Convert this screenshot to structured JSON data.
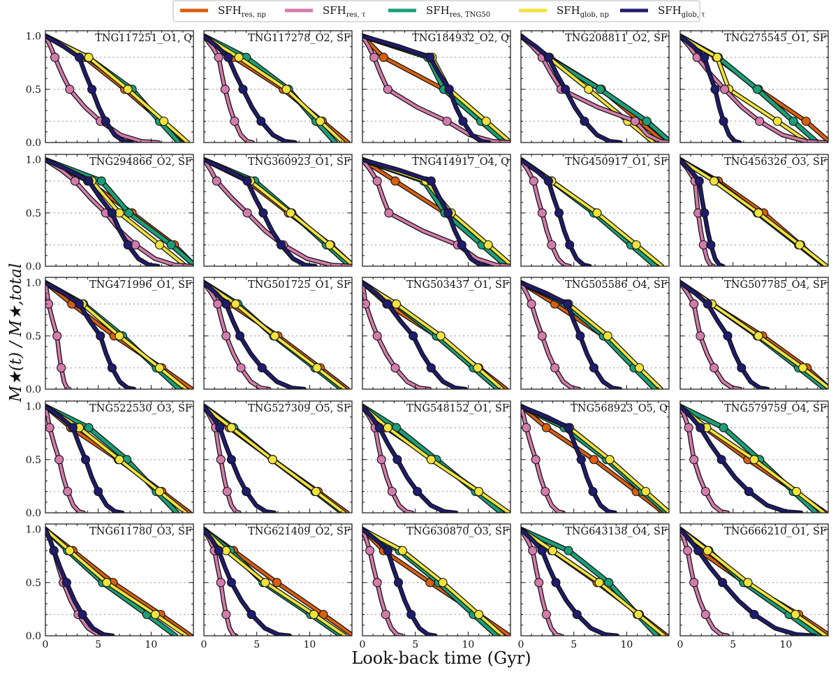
{
  "chart_data": {
    "type": "line",
    "layout": "5x5 grid of small-multiple panels",
    "xlabel": "Look-back time (Gyr)",
    "ylabel": "M★(t) / M★,total",
    "xlim": [
      0,
      14
    ],
    "ylim": [
      0,
      1.05
    ],
    "xticks": [
      0,
      5,
      10
    ],
    "yticks": [
      "0.0",
      "0.5",
      "1.0"
    ],
    "reference_lines_y": [
      0.2,
      0.5,
      0.8
    ],
    "legend_position": "top-center",
    "legend": [
      {
        "id": "res_np",
        "base": "SFH",
        "sub": "res, np",
        "color": "#d95f0e"
      },
      {
        "id": "res_tau",
        "base": "SFH",
        "sub": "res, τ",
        "color": "#d47bad"
      },
      {
        "id": "res_tng",
        "base": "SFH",
        "sub": "res, TNG50",
        "color": "#1b9e77"
      },
      {
        "id": "glob_np",
        "base": "SFH",
        "sub": "glob, np",
        "color": "#f1e33c"
      },
      {
        "id": "glob_tau",
        "base": "SFH",
        "sub": "glob, τ",
        "color": "#1f1c6e"
      }
    ],
    "series_note": "each series given by look-back times (Gyr) at which the cumulative mass fraction equals 0.8, 0.5, 0.2 (marked points)",
    "panels": [
      {
        "label": "TNG117251_O1, Q",
        "res_np": [
          3.7,
          7.5,
          11.0
        ],
        "res_tau": [
          0.9,
          2.3,
          5.2
        ],
        "res_tng": [
          4.0,
          8.2,
          10.8
        ],
        "glob_np": [
          4.1,
          7.8,
          11.2
        ],
        "glob_tau": [
          3.2,
          4.4,
          5.7
        ]
      },
      {
        "label": "TNG117278_O2, SF",
        "res_np": [
          2.8,
          7.5,
          11.2
        ],
        "res_tau": [
          1.4,
          2.0,
          2.9
        ],
        "res_tng": [
          4.0,
          8.0,
          10.6
        ],
        "glob_np": [
          3.3,
          7.8,
          11.0
        ],
        "glob_tau": [
          2.3,
          3.7,
          5.4
        ]
      },
      {
        "label": "TNG184932_O2, Q",
        "res_np": [
          2.0,
          7.7,
          11.4
        ],
        "res_tau": [
          1.1,
          2.4,
          8.0
        ],
        "res_tng": [
          6.2,
          7.7,
          11.2
        ],
        "glob_np": [
          6.6,
          8.2,
          11.7
        ],
        "glob_tau": [
          6.4,
          8.2,
          9.5
        ]
      },
      {
        "label": "TNG208811_O2, SF",
        "res_np": [
          2.7,
          7.6,
          11.2
        ],
        "res_tau": [
          2.0,
          3.8,
          10.8
        ],
        "res_tng": [
          2.5,
          7.5,
          11.9
        ],
        "glob_np": [
          2.6,
          6.4,
          10.1
        ],
        "glob_tau": [
          2.6,
          4.2,
          6.0
        ]
      },
      {
        "label": "TNG275545_O1, SF",
        "res_np": [
          3.4,
          7.4,
          11.9
        ],
        "res_tau": [
          1.6,
          4.2,
          7.5
        ],
        "res_tng": [
          3.6,
          7.3,
          10.7
        ],
        "glob_np": [
          3.5,
          4.6,
          9.2
        ],
        "glob_tau": [
          2.3,
          3.3,
          4.1
        ]
      },
      {
        "label": "TNG294866_O2, SF",
        "res_np": [
          4.0,
          8.2,
          12.2
        ],
        "res_tau": [
          2.8,
          5.7,
          8.5
        ],
        "res_tng": [
          5.3,
          7.9,
          11.9
        ],
        "glob_np": [
          4.4,
          7.0,
          10.8
        ],
        "glob_tau": [
          4.1,
          6.3,
          7.8
        ]
      },
      {
        "label": "TNG360923_O1, SF",
        "res_np": [
          4.1,
          8.0,
          12.0
        ],
        "res_tau": [
          1.2,
          4.1,
          7.5
        ],
        "res_tng": [
          4.8,
          8.3,
          11.6
        ],
        "glob_np": [
          4.4,
          8.2,
          11.9
        ],
        "glob_tau": [
          4.1,
          5.6,
          7.3
        ]
      },
      {
        "label": "TNG414917_O4, Q",
        "res_np": [
          3.1,
          7.8,
          11.5
        ],
        "res_tau": [
          1.4,
          2.5,
          9.0
        ],
        "res_tng": [
          5.8,
          7.8,
          11.3
        ],
        "glob_np": [
          6.0,
          8.4,
          11.9
        ],
        "glob_tau": [
          6.5,
          8.1,
          9.4
        ]
      },
      {
        "label": "TNG450917_O1, SF",
        "res_np": [
          2.9,
          7.0,
          10.7
        ],
        "res_tau": [
          1.2,
          2.0,
          2.9
        ],
        "res_tng": [
          2.9,
          6.9,
          10.4
        ],
        "glob_np": [
          2.9,
          7.2,
          10.9
        ],
        "glob_tau": [
          2.6,
          3.6,
          4.6
        ]
      },
      {
        "label": "TNG456326_O3, SF",
        "res_np": [
          3.6,
          7.9,
          11.4
        ],
        "res_tau": [
          1.4,
          1.7,
          2.2
        ],
        "res_tng": [
          3.3,
          7.3,
          11.2
        ],
        "glob_np": [
          3.2,
          7.4,
          11.3
        ],
        "glob_tau": [
          1.8,
          2.3,
          2.9
        ]
      },
      {
        "label": "TNG471996_O1, SF",
        "res_np": [
          2.5,
          6.5,
          11.0
        ],
        "res_tau": [
          0.3,
          1.1,
          1.5
        ],
        "res_tng": [
          3.6,
          7.3,
          10.5
        ],
        "glob_np": [
          3.5,
          7.0,
          10.8
        ],
        "glob_tau": [
          3.2,
          5.2,
          6.3
        ]
      },
      {
        "label": "TNG501725_O1, SF",
        "res_np": [
          2.5,
          7.0,
          11.0
        ],
        "res_tau": [
          1.3,
          2.1,
          3.5
        ],
        "res_tng": [
          3.2,
          6.6,
          10.5
        ],
        "glob_np": [
          3.0,
          6.7,
          10.7
        ],
        "glob_tau": [
          2.1,
          3.4,
          5.5
        ]
      },
      {
        "label": "TNG503437_O1, SF",
        "res_np": [
          2.3,
          7.0,
          11.0
        ],
        "res_tau": [
          0.3,
          1.4,
          3.1
        ],
        "res_tng": [
          3.1,
          7.0,
          10.5
        ],
        "glob_np": [
          3.2,
          7.4,
          10.9
        ],
        "glob_tau": [
          2.4,
          4.8,
          6.5
        ]
      },
      {
        "label": "TNG505586_O4, SF",
        "res_np": [
          3.2,
          7.8,
          11.0
        ],
        "res_tau": [
          1.0,
          2.0,
          3.2
        ],
        "res_tng": [
          4.2,
          7.8,
          10.7
        ],
        "glob_np": [
          4.5,
          8.2,
          11.2
        ],
        "glob_tau": [
          4.4,
          5.6,
          6.9
        ]
      },
      {
        "label": "TNG507785_O4, SF",
        "res_np": [
          3.0,
          7.8,
          12.0
        ],
        "res_tau": [
          1.3,
          1.9,
          3.2
        ],
        "res_tng": [
          3.0,
          7.3,
          11.2
        ],
        "glob_np": [
          3.0,
          7.4,
          11.6
        ],
        "glob_tau": [
          2.6,
          4.5,
          5.8
        ]
      },
      {
        "label": "TNG522530_O3, SF",
        "res_np": [
          2.4,
          6.9,
          11.0
        ],
        "res_tau": [
          0.4,
          1.3,
          2.1
        ],
        "res_tng": [
          4.1,
          7.7,
          10.5
        ],
        "glob_np": [
          3.2,
          7.0,
          10.8
        ],
        "glob_tau": [
          2.6,
          3.8,
          5.0
        ]
      },
      {
        "label": "TNG527309_O5, SF",
        "res_np": [
          2.4,
          6.5,
          10.8
        ],
        "res_tau": [
          1.1,
          1.6,
          2.2
        ],
        "res_tng": [
          2.8,
          6.5,
          10.5
        ],
        "glob_np": [
          2.6,
          6.5,
          10.6
        ],
        "glob_tau": [
          1.5,
          2.6,
          4.0
        ]
      },
      {
        "label": "TNG548152_O1, SF",
        "res_np": [
          2.2,
          6.7,
          11.0
        ],
        "res_tau": [
          1.2,
          1.8,
          2.8
        ],
        "res_tng": [
          3.2,
          7.0,
          10.7
        ],
        "glob_np": [
          2.4,
          6.5,
          11.0
        ],
        "glob_tau": [
          1.6,
          3.3,
          5.2
        ]
      },
      {
        "label": "TNG568923_O5, Q",
        "res_np": [
          2.4,
          6.9,
          10.9
        ],
        "res_tau": [
          0.5,
          1.4,
          2.3
        ],
        "res_tng": [
          4.1,
          8.1,
          11.5
        ],
        "glob_np": [
          4.6,
          8.4,
          11.8
        ],
        "glob_tau": [
          4.5,
          5.7,
          6.8
        ]
      },
      {
        "label": "TNG579759_O4, SF",
        "res_np": [
          2.3,
          6.4,
          10.9
        ],
        "res_tau": [
          0.8,
          1.3,
          2.4
        ],
        "res_tng": [
          4.1,
          7.5,
          10.7
        ],
        "glob_np": [
          2.5,
          7.0,
          11.0
        ],
        "glob_tau": [
          1.9,
          3.9,
          6.5
        ]
      },
      {
        "label": "TNG611780_O3, SF",
        "res_np": [
          2.6,
          6.4,
          10.9
        ],
        "res_tau": [
          0.8,
          1.7,
          3.1
        ],
        "res_tng": [
          2.1,
          5.4,
          9.6
        ],
        "glob_np": [
          2.3,
          5.8,
          10.4
        ],
        "glob_tau": [
          0.8,
          2.0,
          3.5
        ]
      },
      {
        "label": "TNG621409_O2, SF",
        "res_np": [
          2.8,
          6.9,
          11.3
        ],
        "res_tau": [
          1.0,
          1.6,
          2.1
        ],
        "res_tng": [
          2.5,
          5.6,
          10.1
        ],
        "glob_np": [
          2.1,
          5.8,
          10.4
        ],
        "glob_tau": [
          1.4,
          2.6,
          4.5
        ]
      },
      {
        "label": "TNG630870_O3, SF",
        "res_np": [
          2.0,
          6.4,
          11.0
        ],
        "res_tau": [
          0.7,
          1.4,
          2.2
        ],
        "res_tng": [
          3.5,
          7.2,
          10.5
        ],
        "glob_np": [
          3.8,
          7.6,
          11.0
        ],
        "glob_tau": [
          2.4,
          3.4,
          4.6
        ]
      },
      {
        "label": "TNG643138_O4, SF",
        "res_np": [
          2.9,
          7.2,
          11.2
        ],
        "res_tau": [
          1.1,
          1.7,
          2.4
        ],
        "res_tng": [
          4.5,
          8.3,
          11.0
        ],
        "glob_np": [
          3.0,
          7.4,
          11.1
        ],
        "glob_tau": [
          2.0,
          3.3,
          5.3
        ]
      },
      {
        "label": "TNG666210_O1, SF",
        "res_np": [
          1.8,
          6.1,
          11.2
        ],
        "res_tau": [
          0.7,
          1.3,
          2.4
        ],
        "res_tng": [
          2.7,
          6.0,
          10.3
        ],
        "glob_np": [
          2.6,
          6.4,
          10.9
        ],
        "glob_tau": [
          1.7,
          4.0,
          7.0
        ]
      }
    ]
  }
}
